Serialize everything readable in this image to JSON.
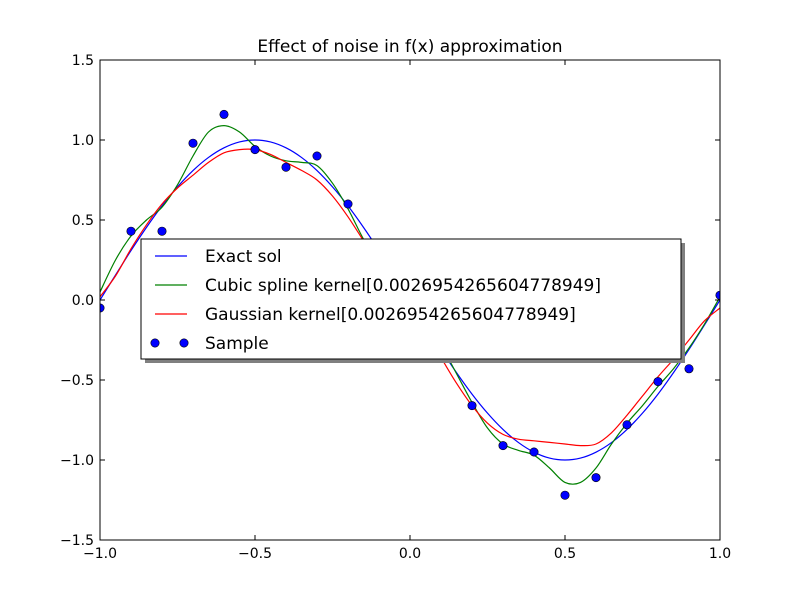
{
  "chart_data": {
    "type": "line",
    "title": "Effect of noise in f(x) approximation",
    "xlabel": "",
    "ylabel": "",
    "xlim": [
      -1.0,
      1.0
    ],
    "ylim": [
      -1.5,
      1.5
    ],
    "xticks": [
      "−1.0",
      "−0.5",
      "0.0",
      "0.5",
      "1.0"
    ],
    "xtick_values": [
      -1.0,
      -0.5,
      0.0,
      0.5,
      1.0
    ],
    "yticks": [
      "1.5",
      "1.0",
      "0.5",
      "0.0",
      "−0.5",
      "−1.0",
      "−1.5"
    ],
    "ytick_values": [
      1.5,
      1.0,
      0.5,
      0.0,
      -0.5,
      -1.0,
      -1.5
    ],
    "grid": false,
    "legend_placement": "center",
    "series": [
      {
        "name": "Exact sol",
        "color": "#0000ff",
        "style": "line",
        "x": [
          -1.0,
          -0.95,
          -0.9,
          -0.85,
          -0.8,
          -0.75,
          -0.7,
          -0.65,
          -0.6,
          -0.55,
          -0.5,
          -0.45,
          -0.4,
          -0.35,
          -0.3,
          -0.25,
          -0.2,
          -0.15,
          -0.1,
          -0.05,
          0.0,
          0.05,
          0.1,
          0.15,
          0.2,
          0.25,
          0.3,
          0.35,
          0.4,
          0.45,
          0.5,
          0.55,
          0.6,
          0.65,
          0.7,
          0.75,
          0.8,
          0.85,
          0.9,
          0.95,
          1.0
        ],
        "y": [
          0.0,
          0.156,
          0.309,
          0.454,
          0.588,
          0.707,
          0.809,
          0.891,
          0.951,
          0.988,
          1.0,
          0.988,
          0.951,
          0.891,
          0.809,
          0.707,
          0.588,
          0.454,
          0.309,
          0.156,
          0.0,
          -0.156,
          -0.309,
          -0.454,
          -0.588,
          -0.707,
          -0.809,
          -0.891,
          -0.951,
          -0.988,
          -1.0,
          -0.988,
          -0.951,
          -0.891,
          -0.809,
          -0.707,
          -0.588,
          -0.454,
          -0.309,
          -0.156,
          0.0
        ]
      },
      {
        "name": "Cubic spline kernel[0.002695426560477894​9]",
        "color": "#008000",
        "style": "line",
        "x": [
          -1.0,
          -0.95,
          -0.9,
          -0.85,
          -0.8,
          -0.75,
          -0.7,
          -0.65,
          -0.6,
          -0.55,
          -0.5,
          -0.45,
          -0.4,
          -0.35,
          -0.3,
          -0.25,
          -0.2,
          -0.15,
          -0.1,
          -0.05,
          0.0,
          0.05,
          0.1,
          0.15,
          0.2,
          0.25,
          0.3,
          0.35,
          0.4,
          0.45,
          0.5,
          0.55,
          0.6,
          0.65,
          0.7,
          0.75,
          0.8,
          0.85,
          0.9,
          0.95,
          1.0
        ],
        "y": [
          0.05,
          0.25,
          0.4,
          0.5,
          0.58,
          0.72,
          0.9,
          1.05,
          1.09,
          1.05,
          0.96,
          0.9,
          0.87,
          0.86,
          0.84,
          0.73,
          0.57,
          0.38,
          0.22,
          0.1,
          0.0,
          -0.12,
          -0.28,
          -0.46,
          -0.64,
          -0.8,
          -0.9,
          -0.94,
          -0.97,
          -1.05,
          -1.14,
          -1.14,
          -1.05,
          -0.9,
          -0.77,
          -0.66,
          -0.54,
          -0.43,
          -0.3,
          -0.15,
          0.02
        ]
      },
      {
        "name": "Gaussian kernel[0.002695426560477894​9]",
        "color": "#ff0000",
        "style": "line",
        "x": [
          -1.0,
          -0.95,
          -0.9,
          -0.85,
          -0.8,
          -0.75,
          -0.7,
          -0.65,
          -0.6,
          -0.55,
          -0.5,
          -0.45,
          -0.4,
          -0.35,
          -0.3,
          -0.25,
          -0.2,
          -0.15,
          -0.1,
          -0.05,
          0.0,
          0.05,
          0.1,
          0.15,
          0.2,
          0.25,
          0.3,
          0.35,
          0.4,
          0.45,
          0.5,
          0.55,
          0.6,
          0.65,
          0.7,
          0.75,
          0.8,
          0.85,
          0.9,
          0.95,
          1.0
        ],
        "y": [
          0.02,
          0.15,
          0.32,
          0.47,
          0.6,
          0.7,
          0.78,
          0.86,
          0.92,
          0.94,
          0.94,
          0.91,
          0.86,
          0.81,
          0.75,
          0.65,
          0.52,
          0.37,
          0.22,
          0.08,
          -0.05,
          -0.2,
          -0.36,
          -0.52,
          -0.66,
          -0.77,
          -0.84,
          -0.87,
          -0.88,
          -0.89,
          -0.9,
          -0.91,
          -0.9,
          -0.83,
          -0.72,
          -0.6,
          -0.48,
          -0.37,
          -0.25,
          -0.13,
          -0.05
        ]
      },
      {
        "name": "Sample",
        "color": "#0000ff",
        "style": "marker",
        "x": [
          -1.0,
          -0.9,
          -0.8,
          -0.7,
          -0.6,
          -0.5,
          -0.4,
          -0.3,
          -0.2,
          -0.1,
          0.0,
          0.1,
          0.2,
          0.3,
          0.4,
          0.5,
          0.6,
          0.7,
          0.8,
          0.9,
          1.0
        ],
        "y": [
          -0.05,
          0.43,
          0.43,
          0.98,
          1.16,
          0.94,
          0.83,
          0.9,
          0.6,
          0.3,
          0.0,
          -0.3,
          -0.66,
          -0.91,
          -0.95,
          -1.22,
          -1.11,
          -0.78,
          -0.51,
          -0.43,
          0.03
        ]
      }
    ]
  }
}
